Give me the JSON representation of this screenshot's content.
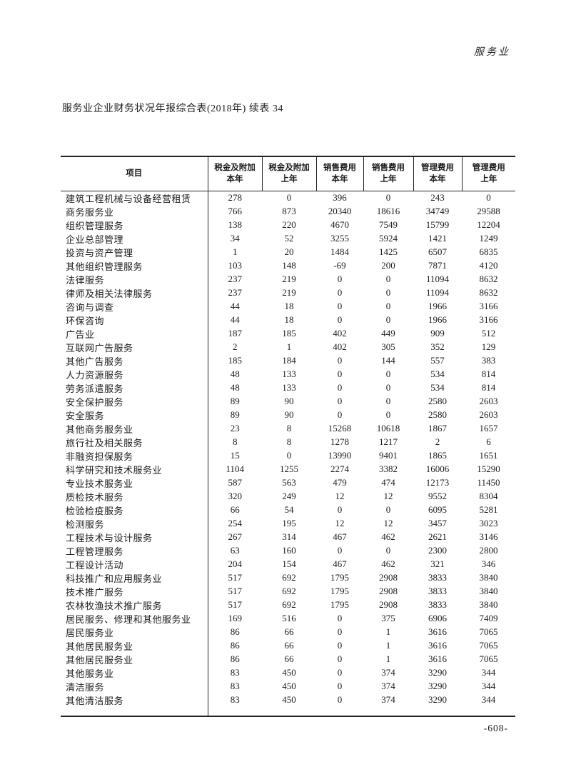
{
  "page": {
    "corner_label": "服务业",
    "title": "服务业企业财务状况年报综合表(2018年) 续表 34",
    "page_number": "-608-"
  },
  "table": {
    "item_header": "项目",
    "column_groups": [
      {
        "title": "税金及附加",
        "sub": "本年"
      },
      {
        "title": "税金及附加",
        "sub": "上年"
      },
      {
        "title": "销售费用",
        "sub": "本年"
      },
      {
        "title": "销售费用",
        "sub": "上年"
      },
      {
        "title": "管理费用",
        "sub": "本年"
      },
      {
        "title": "管理费用",
        "sub": "上年"
      }
    ],
    "rows": [
      {
        "name": "建筑工程机械与设备经营租赁",
        "values": [
          "278",
          "0",
          "396",
          "0",
          "243",
          "0"
        ]
      },
      {
        "name": "商务服务业",
        "values": [
          "766",
          "873",
          "20340",
          "18616",
          "34749",
          "29588"
        ]
      },
      {
        "name": "组织管理服务",
        "values": [
          "138",
          "220",
          "4670",
          "7549",
          "15799",
          "12204"
        ]
      },
      {
        "name": "企业总部管理",
        "values": [
          "34",
          "52",
          "3255",
          "5924",
          "1421",
          "1249"
        ]
      },
      {
        "name": "投资与资产管理",
        "values": [
          "1",
          "20",
          "1484",
          "1425",
          "6507",
          "6835"
        ]
      },
      {
        "name": "其他组织管理服务",
        "values": [
          "103",
          "148",
          "-69",
          "200",
          "7871",
          "4120"
        ]
      },
      {
        "name": "法律服务",
        "values": [
          "237",
          "219",
          "0",
          "0",
          "11094",
          "8632"
        ]
      },
      {
        "name": "律师及相关法律服务",
        "values": [
          "237",
          "219",
          "0",
          "0",
          "11094",
          "8632"
        ]
      },
      {
        "name": "咨询与调查",
        "values": [
          "44",
          "18",
          "0",
          "0",
          "1966",
          "3166"
        ]
      },
      {
        "name": "环保咨询",
        "values": [
          "44",
          "18",
          "0",
          "0",
          "1966",
          "3166"
        ]
      },
      {
        "name": "广告业",
        "values": [
          "187",
          "185",
          "402",
          "449",
          "909",
          "512"
        ]
      },
      {
        "name": "互联网广告服务",
        "values": [
          "2",
          "1",
          "402",
          "305",
          "352",
          "129"
        ]
      },
      {
        "name": "其他广告服务",
        "values": [
          "185",
          "184",
          "0",
          "144",
          "557",
          "383"
        ]
      },
      {
        "name": "人力资源服务",
        "values": [
          "48",
          "133",
          "0",
          "0",
          "534",
          "814"
        ]
      },
      {
        "name": "劳务派遣服务",
        "values": [
          "48",
          "133",
          "0",
          "0",
          "534",
          "814"
        ]
      },
      {
        "name": "安全保护服务",
        "values": [
          "89",
          "90",
          "0",
          "0",
          "2580",
          "2603"
        ]
      },
      {
        "name": "安全服务",
        "values": [
          "89",
          "90",
          "0",
          "0",
          "2580",
          "2603"
        ]
      },
      {
        "name": "其他商务服务业",
        "values": [
          "23",
          "8",
          "15268",
          "10618",
          "1867",
          "1657"
        ]
      },
      {
        "name": "旅行社及相关服务",
        "values": [
          "8",
          "8",
          "1278",
          "1217",
          "2",
          "6"
        ]
      },
      {
        "name": "非融资担保服务",
        "values": [
          "15",
          "0",
          "13990",
          "9401",
          "1865",
          "1651"
        ]
      },
      {
        "name": "科学研究和技术服务业",
        "values": [
          "1104",
          "1255",
          "2274",
          "3382",
          "16006",
          "15290"
        ]
      },
      {
        "name": "专业技术服务业",
        "values": [
          "587",
          "563",
          "479",
          "474",
          "12173",
          "11450"
        ]
      },
      {
        "name": "质检技术服务",
        "values": [
          "320",
          "249",
          "12",
          "12",
          "9552",
          "8304"
        ]
      },
      {
        "name": "检验检疫服务",
        "values": [
          "66",
          "54",
          "0",
          "0",
          "6095",
          "5281"
        ]
      },
      {
        "name": "检测服务",
        "values": [
          "254",
          "195",
          "12",
          "12",
          "3457",
          "3023"
        ]
      },
      {
        "name": "工程技术与设计服务",
        "values": [
          "267",
          "314",
          "467",
          "462",
          "2621",
          "3146"
        ]
      },
      {
        "name": "工程管理服务",
        "values": [
          "63",
          "160",
          "0",
          "0",
          "2300",
          "2800"
        ]
      },
      {
        "name": "工程设计活动",
        "values": [
          "204",
          "154",
          "467",
          "462",
          "321",
          "346"
        ]
      },
      {
        "name": "科技推广和应用服务业",
        "values": [
          "517",
          "692",
          "1795",
          "2908",
          "3833",
          "3840"
        ]
      },
      {
        "name": "技术推广服务",
        "values": [
          "517",
          "692",
          "1795",
          "2908",
          "3833",
          "3840"
        ]
      },
      {
        "name": "农林牧渔技术推广服务",
        "values": [
          "517",
          "692",
          "1795",
          "2908",
          "3833",
          "3840"
        ]
      },
      {
        "name": "居民服务、修理和其他服务业",
        "values": [
          "169",
          "516",
          "0",
          "375",
          "6906",
          "7409"
        ]
      },
      {
        "name": "居民服务业",
        "values": [
          "86",
          "66",
          "0",
          "1",
          "3616",
          "7065"
        ]
      },
      {
        "name": "其他居民服务业",
        "values": [
          "86",
          "66",
          "0",
          "1",
          "3616",
          "7065"
        ]
      },
      {
        "name": "其他居民服务业",
        "values": [
          "86",
          "66",
          "0",
          "1",
          "3616",
          "7065"
        ]
      },
      {
        "name": "其他服务业",
        "values": [
          "83",
          "450",
          "0",
          "374",
          "3290",
          "344"
        ]
      },
      {
        "name": "清洁服务",
        "values": [
          "83",
          "450",
          "0",
          "374",
          "3290",
          "344"
        ]
      },
      {
        "name": "其他清洁服务",
        "values": [
          "83",
          "450",
          "0",
          "374",
          "3290",
          "344"
        ]
      }
    ]
  }
}
